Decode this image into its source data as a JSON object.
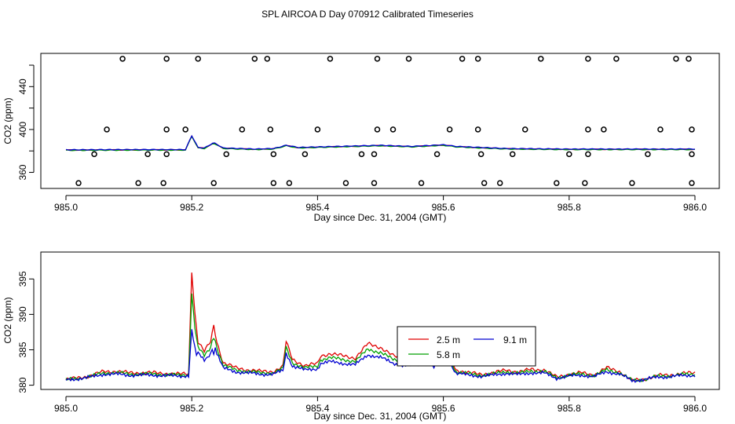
{
  "title": "SPL AIRCOA D  Day 070912  Calibrated Timeseries",
  "colors": {
    "red": "#e00000",
    "green": "#00a000",
    "blue": "#0000d0",
    "black": "#000000"
  },
  "chart_data": [
    {
      "type": "line",
      "id": "top",
      "xlabel": "Day since Dec. 31, 2004 (GMT)",
      "ylabel": "CO2 (ppm)",
      "xlim": [
        985.0,
        986.0
      ],
      "ylim": [
        345,
        471
      ],
      "xticks": [
        985.0,
        985.2,
        985.4,
        985.6,
        985.8,
        986.0
      ],
      "xtick_labels": [
        "985.0",
        "985.2",
        "985.4",
        "985.6",
        "985.8",
        "986.0"
      ],
      "yticks": [
        360,
        380,
        400,
        420,
        440,
        460
      ],
      "ytick_labels": [
        "360",
        "",
        "400",
        "",
        "440",
        ""
      ],
      "baseline": {
        "x": [
          985.0,
          985.1,
          985.19,
          985.2,
          985.21,
          985.22,
          985.235,
          985.25,
          985.3,
          985.33,
          985.35,
          985.37,
          985.4,
          985.5,
          985.55,
          985.6,
          985.62,
          985.7,
          985.8,
          985.9,
          986.0
        ],
        "y": [
          380.8,
          381.0,
          381.0,
          394.0,
          383.0,
          382.5,
          387.5,
          382.5,
          381.5,
          382.0,
          385.0,
          383.0,
          383.5,
          385.0,
          384.0,
          385.5,
          384.0,
          382.0,
          381.5,
          381.5,
          381.5
        ]
      },
      "series": [
        {
          "name": "red",
          "color": "#e00000"
        },
        {
          "name": "green",
          "color": "#00a000"
        },
        {
          "name": "blue",
          "color": "#0000d0"
        }
      ],
      "markers": {
        "shape": "open-circle",
        "levels": [
          350,
          377,
          400,
          466
        ],
        "points": [
          {
            "level": 466,
            "x": [
              985.09,
              985.16,
              985.21,
              985.3,
              985.32,
              985.42,
              985.495,
              985.545,
              985.63,
              985.655,
              985.755,
              985.83,
              985.875,
              985.97,
              985.99
            ]
          },
          {
            "level": 400,
            "x": [
              985.065,
              985.16,
              985.19,
              985.28,
              985.325,
              985.4,
              985.495,
              985.52,
              985.61,
              985.655,
              985.73,
              985.83,
              985.855,
              985.945,
              985.995
            ]
          },
          {
            "level": 377,
            "x": [
              985.045,
              985.13,
              985.16,
              985.255,
              985.33,
              985.38,
              985.47,
              985.49,
              985.59,
              985.66,
              985.71,
              985.8,
              985.83,
              985.925,
              985.995
            ]
          },
          {
            "level": 350,
            "x": [
              985.02,
              985.115,
              985.155,
              985.235,
              985.33,
              985.355,
              985.445,
              985.49,
              985.565,
              985.665,
              985.69,
              985.78,
              985.825,
              985.9,
              985.995
            ]
          }
        ]
      }
    },
    {
      "type": "line",
      "id": "bottom",
      "xlabel": "Day since Dec. 31, 2004 (GMT)",
      "ylabel": "CO2 (ppm)",
      "xlim": [
        985.0,
        986.0
      ],
      "ylim": [
        379.4,
        398.8
      ],
      "xticks": [
        985.0,
        985.2,
        985.4,
        985.6,
        985.8,
        986.0
      ],
      "xtick_labels": [
        "985.0",
        "985.2",
        "985.4",
        "985.6",
        "985.8",
        "986.0"
      ],
      "yticks": [
        380,
        385,
        390,
        395
      ],
      "ytick_labels": [
        "380",
        "385",
        "390",
        "395"
      ],
      "base": {
        "x": [
          985.0,
          985.02,
          985.04,
          985.06,
          985.08,
          985.1,
          985.12,
          985.14,
          985.16,
          985.18,
          985.195,
          985.2,
          985.205,
          985.21,
          985.22,
          985.23,
          985.235,
          985.24,
          985.25,
          985.27,
          985.29,
          985.31,
          985.33,
          985.345,
          985.35,
          985.36,
          985.38,
          985.4,
          985.405,
          985.42,
          985.44,
          985.46,
          985.48,
          985.5,
          985.52,
          985.54,
          985.56,
          985.575,
          985.585,
          985.6,
          985.61,
          985.62,
          985.64,
          985.66,
          985.68,
          985.7,
          985.72,
          985.74,
          985.76,
          985.78,
          985.8,
          985.82,
          985.84,
          985.86,
          985.88,
          985.9,
          985.92,
          985.94,
          985.96,
          985.98,
          986.0
        ],
        "y": [
          380.6,
          380.9,
          381.2,
          381.8,
          381.8,
          381.6,
          381.6,
          381.6,
          381.5,
          381.4,
          381.5,
          396.0,
          390.0,
          386.0,
          384.6,
          386.0,
          388.3,
          386.0,
          383.0,
          382.3,
          382.0,
          381.8,
          381.8,
          382.5,
          386.0,
          383.5,
          382.6,
          382.9,
          384.0,
          384.3,
          384.0,
          383.7,
          385.7,
          385.2,
          384.0,
          383.5,
          383.8,
          384.0,
          383.2,
          385.3,
          384.2,
          382.0,
          381.6,
          381.4,
          381.6,
          382.0,
          381.7,
          382.1,
          382.0,
          381.0,
          381.4,
          381.6,
          381.3,
          382.3,
          381.8,
          380.5,
          380.7,
          381.2,
          381.3,
          381.5,
          381.6
        ]
      },
      "series": [
        {
          "name": "2.5 m",
          "color": "#e00000"
        },
        {
          "name": "5.8 m",
          "color": "#00a000"
        },
        {
          "name": "9.1 m",
          "color": "#0000d0"
        }
      ],
      "legend": {
        "placement": "center-right"
      }
    }
  ]
}
